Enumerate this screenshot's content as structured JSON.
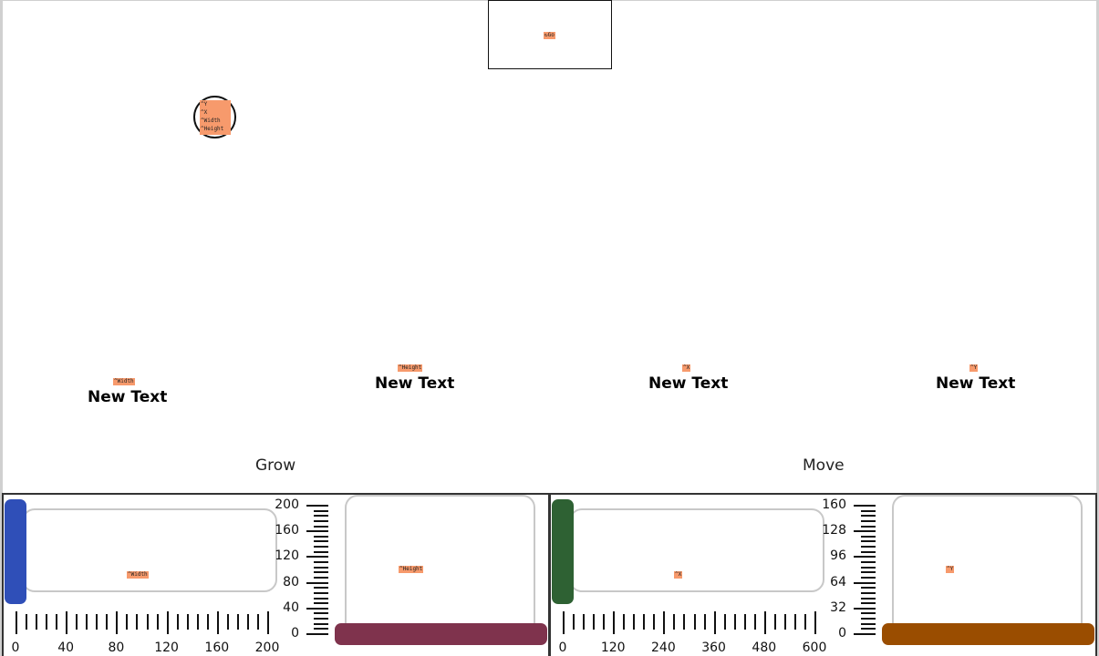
{
  "go_button": {
    "label": "↻Go"
  },
  "circle": {
    "tags": [
      "^Y",
      "^X",
      "^Width",
      "^Height"
    ]
  },
  "new_texts": [
    {
      "label": "New Text",
      "tag": "^Width"
    },
    {
      "label": "New Text",
      "tag": "^Height"
    },
    {
      "label": "New Text",
      "tag": "^X"
    },
    {
      "label": "New Text",
      "tag": "^Y"
    }
  ],
  "sections": [
    {
      "title": "Grow",
      "h_slider": {
        "tag": "^Width",
        "min": 0,
        "max": 200,
        "value": 0,
        "color": "#2f4fb8",
        "labels": [
          "0",
          "40",
          "80",
          "120",
          "160",
          "200"
        ]
      },
      "v_slider": {
        "tag": "^Height",
        "min": 0,
        "max": 200,
        "value": 0,
        "color": "#7f334d",
        "labels": [
          "200",
          "160",
          "120",
          "80",
          "40",
          "0"
        ]
      }
    },
    {
      "title": "Move",
      "h_slider": {
        "tag": "^X",
        "min": 0,
        "max": 600,
        "value": 0,
        "color": "#2e6133",
        "labels": [
          "0",
          "120",
          "240",
          "360",
          "480",
          "600"
        ]
      },
      "v_slider": {
        "tag": "^Y",
        "min": 0,
        "max": 160,
        "value": 0,
        "color": "#9a4d00",
        "labels": [
          "160",
          "128",
          "96",
          "64",
          "32",
          "0"
        ]
      }
    }
  ]
}
